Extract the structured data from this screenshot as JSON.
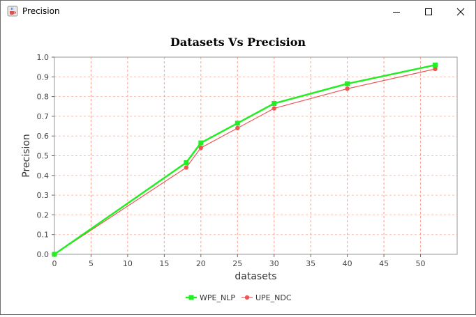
{
  "window": {
    "title": "Precision",
    "icon": "java-cup-icon",
    "controls": [
      "minimize-icon",
      "maximize-icon",
      "close-icon"
    ]
  },
  "chart_data": {
    "type": "line",
    "title": "Datasets Vs Precision",
    "xlabel": "datasets",
    "ylabel": "Precision",
    "xlim": [
      0,
      55
    ],
    "ylim": [
      0.0,
      1.0
    ],
    "x_ticks": [
      "0",
      "5",
      "10",
      "15",
      "20",
      "25",
      "30",
      "35",
      "40",
      "45",
      "50"
    ],
    "y_ticks": [
      "0.0",
      "0.1",
      "0.2",
      "0.3",
      "0.4",
      "0.5",
      "0.6",
      "0.7",
      "0.8",
      "0.9",
      "1.0"
    ],
    "grid": true,
    "legend_position": "bottom",
    "series": [
      {
        "name": "WPE_NLP",
        "color": "#22ee22",
        "marker": "square",
        "points": [
          [
            0,
            0.0
          ],
          [
            18,
            0.465
          ],
          [
            20,
            0.565
          ],
          [
            25,
            0.665
          ],
          [
            30,
            0.765
          ],
          [
            40,
            0.865
          ],
          [
            52,
            0.96
          ]
        ]
      },
      {
        "name": "UPE_NDC",
        "color": "#ee5555",
        "marker": "circle",
        "points": [
          [
            0,
            0.0
          ],
          [
            18,
            0.44
          ],
          [
            20,
            0.54
          ],
          [
            25,
            0.64
          ],
          [
            30,
            0.74
          ],
          [
            40,
            0.84
          ],
          [
            52,
            0.94
          ]
        ]
      }
    ]
  }
}
